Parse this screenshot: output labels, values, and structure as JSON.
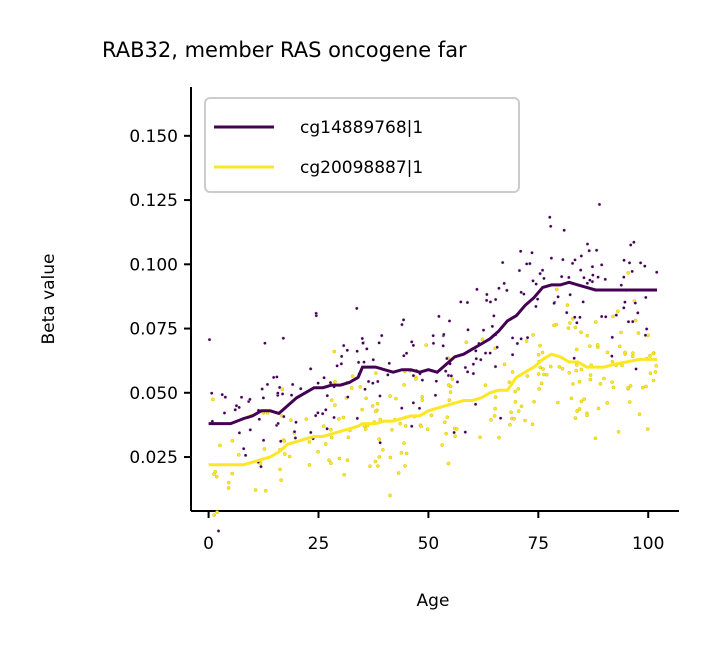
{
  "chart_data": {
    "type": "scatter",
    "title": "RAB32, member RAS oncogene far",
    "xlabel": "Age",
    "ylabel": "Beta value",
    "xlim": [
      -4,
      107
    ],
    "ylim": [
      0.004,
      0.169
    ],
    "xticks": [
      0,
      25,
      50,
      75,
      100
    ],
    "xtick_labels": [
      "0",
      "25",
      "50",
      "75",
      "100"
    ],
    "yticks": [
      0.025,
      0.05,
      0.075,
      0.1,
      0.125,
      0.15
    ],
    "ytick_labels": [
      "0.025",
      "0.050",
      "0.075",
      "0.100",
      "0.125",
      "0.150"
    ],
    "grid": false,
    "legend_position": "upper-left",
    "series": [
      {
        "name": "cg14889768|1",
        "color": "#440154",
        "trend": {
          "x": [
            0,
            5,
            8,
            10,
            12,
            14,
            16,
            18,
            20,
            22,
            24,
            26,
            28,
            30,
            32,
            34,
            35,
            38,
            40,
            42,
            44,
            46,
            48,
            50,
            52,
            54,
            56,
            58,
            60,
            62,
            64,
            66,
            68,
            70,
            72,
            74,
            76,
            78,
            80,
            82,
            84,
            86,
            88,
            90,
            92,
            95,
            98,
            102
          ],
          "y": [
            0.038,
            0.038,
            0.04,
            0.041,
            0.043,
            0.043,
            0.042,
            0.045,
            0.048,
            0.05,
            0.052,
            0.052,
            0.053,
            0.053,
            0.054,
            0.056,
            0.06,
            0.06,
            0.059,
            0.058,
            0.059,
            0.059,
            0.058,
            0.059,
            0.058,
            0.061,
            0.064,
            0.065,
            0.067,
            0.069,
            0.071,
            0.074,
            0.078,
            0.08,
            0.084,
            0.087,
            0.091,
            0.092,
            0.092,
            0.093,
            0.092,
            0.091,
            0.09,
            0.09,
            0.09,
            0.09,
            0.09,
            0.09
          ]
        }
      },
      {
        "name": "cg20098887|1",
        "color": "#fde725",
        "trend": {
          "x": [
            0,
            5,
            8,
            10,
            12,
            14,
            16,
            18,
            20,
            22,
            24,
            26,
            28,
            30,
            32,
            34,
            35,
            38,
            40,
            42,
            44,
            46,
            48,
            50,
            52,
            54,
            56,
            58,
            60,
            62,
            64,
            66,
            68,
            70,
            72,
            74,
            76,
            78,
            80,
            82,
            84,
            86,
            88,
            90,
            92,
            95,
            98,
            102
          ],
          "y": [
            0.022,
            0.022,
            0.022,
            0.023,
            0.024,
            0.025,
            0.027,
            0.03,
            0.031,
            0.032,
            0.033,
            0.033,
            0.034,
            0.035,
            0.036,
            0.037,
            0.038,
            0.038,
            0.039,
            0.039,
            0.04,
            0.041,
            0.041,
            0.043,
            0.044,
            0.045,
            0.046,
            0.047,
            0.047,
            0.048,
            0.05,
            0.051,
            0.051,
            0.056,
            0.058,
            0.06,
            0.063,
            0.065,
            0.064,
            0.062,
            0.062,
            0.06,
            0.06,
            0.06,
            0.061,
            0.062,
            0.063,
            0.063
          ]
        }
      }
    ],
    "scatter_density": {
      "n_points_per_series": 230,
      "x_range": [
        0,
        102
      ],
      "spread": 0.012
    }
  }
}
